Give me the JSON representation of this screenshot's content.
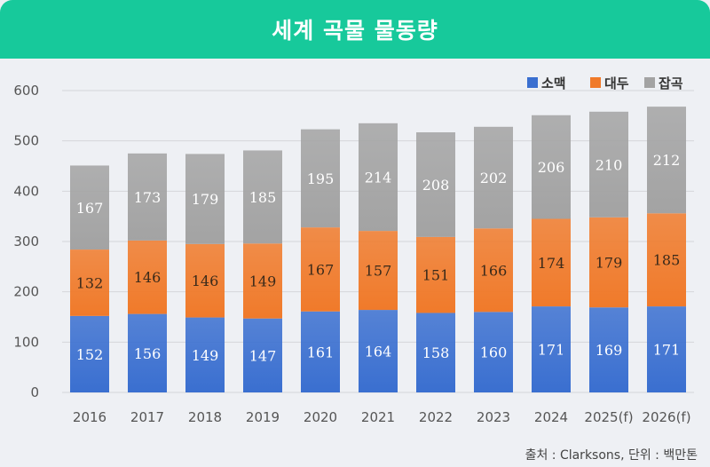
{
  "header": {
    "title": "세계 곡물 물동량"
  },
  "source": "출처 : Clarksons, 단위 : 백만톤",
  "chart_data": {
    "type": "bar",
    "stacked": true,
    "title": "세계 곡물 물동량",
    "categories": [
      "2016",
      "2017",
      "2018",
      "2019",
      "2020",
      "2021",
      "2022",
      "2023",
      "2024",
      "2025(f)",
      "2026(f)"
    ],
    "series": [
      {
        "name": "소맥",
        "color": "#3a6fd0",
        "values": [
          152,
          156,
          149,
          147,
          161,
          164,
          158,
          160,
          171,
          169,
          171
        ]
      },
      {
        "name": "대두",
        "color": "#f07a2a",
        "values": [
          132,
          146,
          146,
          149,
          167,
          157,
          151,
          166,
          174,
          179,
          185
        ]
      },
      {
        "name": "잡곡",
        "color": "#a3a3a3",
        "values": [
          167,
          173,
          179,
          185,
          195,
          214,
          208,
          202,
          206,
          210,
          212
        ]
      }
    ],
    "ylim": [
      0,
      600
    ],
    "yticks": [
      "0",
      "100",
      "200",
      "300",
      "400",
      "500",
      "600"
    ],
    "grid": true,
    "legend": "top-right"
  }
}
